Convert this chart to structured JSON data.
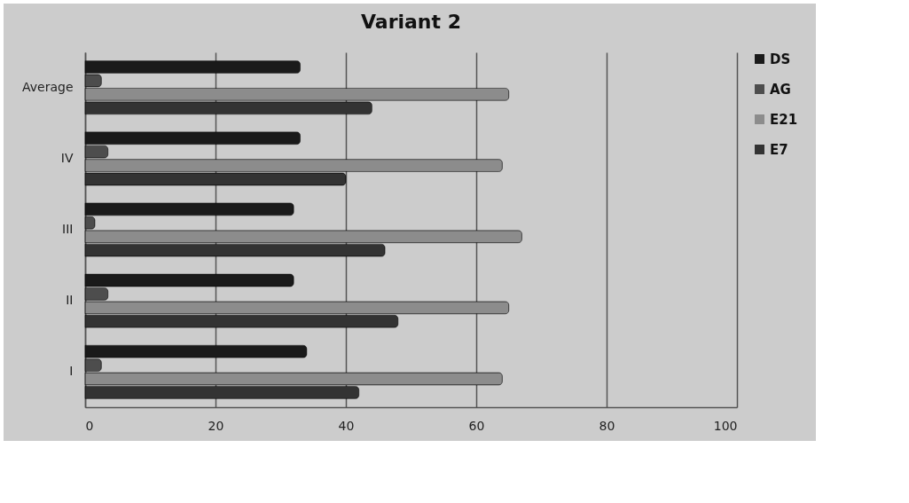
{
  "chart_data": {
    "type": "bar",
    "title": "Variant 2",
    "orientation": "horizontal",
    "categories": [
      "Average",
      "IV",
      "III",
      "II",
      "I"
    ],
    "series": [
      {
        "name": "DS",
        "color": "#1a1a1a",
        "values": [
          33,
          33,
          32,
          32,
          34
        ]
      },
      {
        "name": "AG",
        "color": "#4d4d4d",
        "values": [
          2.5,
          3.5,
          1.5,
          3.5,
          2.5
        ]
      },
      {
        "name": "E21",
        "color": "#8c8c8c",
        "values": [
          65,
          64,
          67,
          65,
          64
        ]
      },
      {
        "name": "E7",
        "color": "#333333",
        "values": [
          44,
          40,
          46,
          48,
          42
        ]
      }
    ],
    "xlim": [
      0,
      100
    ],
    "xticks": [
      0,
      20,
      40,
      60,
      80,
      100
    ],
    "grid": "x",
    "legend": "right"
  }
}
